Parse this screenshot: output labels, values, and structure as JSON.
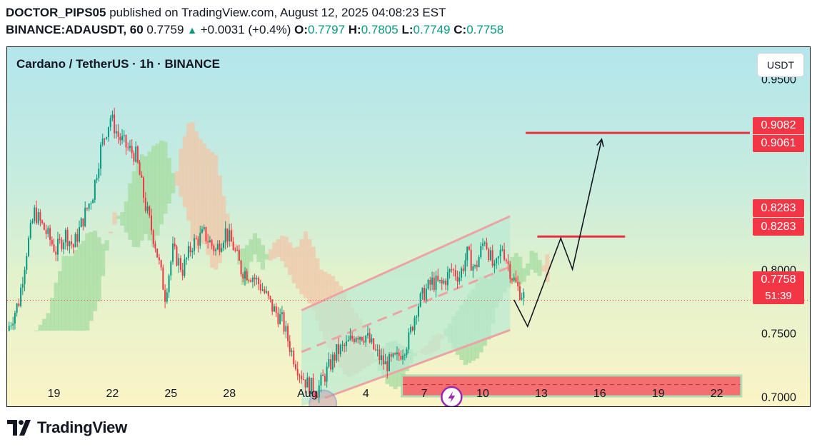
{
  "header": {
    "author": "DOCTOR_PIPS05",
    "published_text": "published on TradingView.com, August 12, 2025 04:08:23 EST",
    "symbol": "BINANCE:ADAUSDT, 60",
    "last": "0.7759",
    "change": "+0.0031 (+0.4%)",
    "o_label": "O:",
    "o_val": "0.7797",
    "h_label": "H:",
    "h_val": "0.7805",
    "l_label": "L:",
    "l_val": "0.7749",
    "c_label": "C:",
    "c_val": "0.7758"
  },
  "chart": {
    "title": "Cardano / TetherUS · 1h · BINANCE",
    "currency_button": "USDT",
    "price_tags": [
      {
        "text": "0.9082"
      },
      {
        "text": "0.9061"
      },
      {
        "text": "0.8283"
      },
      {
        "text": "0.8283"
      },
      {
        "text": "0.7758"
      },
      {
        "text": "51:39"
      }
    ]
  },
  "colors": {
    "up": "#089981",
    "down": "#f23645",
    "level_line": "#e8303f",
    "channel_fill": "#b9ead3",
    "channel_edge": "#eba3a3",
    "cloud_red": "#f0c7a8",
    "cloud_green": "#a6dca0"
  },
  "chart_data": {
    "type": "candlestick",
    "y_ticks": [
      0.95,
      0.9,
      0.85,
      0.8,
      0.75,
      0.7
    ],
    "y_tick_labels": [
      "0.9500",
      "0.9000",
      "0.8500",
      "0.8000",
      "0.7500",
      "0.7000"
    ],
    "ylim": [
      0.6925,
      0.975
    ],
    "x_ticks": [
      19,
      22,
      25,
      28,
      32,
      35,
      38,
      41,
      44,
      47,
      50,
      53
    ],
    "x_tick_labels": [
      "19",
      "22",
      "25",
      "28",
      "Aug",
      "4",
      "7",
      "10",
      "13",
      "16",
      "19",
      "22"
    ],
    "xlim": [
      16.6,
      54.7
    ],
    "close_series": [
      [
        16.6,
        0.752
      ],
      [
        17.2,
        0.775
      ],
      [
        17.6,
        0.815
      ],
      [
        18.0,
        0.845
      ],
      [
        18.5,
        0.832
      ],
      [
        19.1,
        0.815
      ],
      [
        19.6,
        0.828
      ],
      [
        20.0,
        0.818
      ],
      [
        20.5,
        0.84
      ],
      [
        21.0,
        0.86
      ],
      [
        21.4,
        0.895
      ],
      [
        21.9,
        0.92
      ],
      [
        22.3,
        0.905
      ],
      [
        22.8,
        0.895
      ],
      [
        23.2,
        0.89
      ],
      [
        23.7,
        0.85
      ],
      [
        24.2,
        0.82
      ],
      [
        24.7,
        0.78
      ],
      [
        25.1,
        0.815
      ],
      [
        25.6,
        0.8
      ],
      [
        26.1,
        0.82
      ],
      [
        26.7,
        0.828
      ],
      [
        27.3,
        0.815
      ],
      [
        27.8,
        0.83
      ],
      [
        28.2,
        0.818
      ],
      [
        28.6,
        0.8
      ],
      [
        29.2,
        0.795
      ],
      [
        29.7,
        0.785
      ],
      [
        30.2,
        0.77
      ],
      [
        30.7,
        0.76
      ],
      [
        31.2,
        0.735
      ],
      [
        31.6,
        0.72
      ],
      [
        32.0,
        0.71
      ],
      [
        32.5,
        0.705
      ],
      [
        33.0,
        0.72
      ],
      [
        33.5,
        0.735
      ],
      [
        34.0,
        0.74
      ],
      [
        34.5,
        0.75
      ],
      [
        35.0,
        0.748
      ],
      [
        35.5,
        0.735
      ],
      [
        36.0,
        0.725
      ],
      [
        36.6,
        0.73
      ],
      [
        37.2,
        0.745
      ],
      [
        37.6,
        0.77
      ],
      [
        38.0,
        0.782
      ],
      [
        38.4,
        0.79
      ],
      [
        38.9,
        0.788
      ],
      [
        39.4,
        0.8
      ],
      [
        39.8,
        0.795
      ],
      [
        40.2,
        0.812
      ],
      [
        40.6,
        0.8
      ],
      [
        41.1,
        0.825
      ],
      [
        41.6,
        0.798
      ],
      [
        42.0,
        0.818
      ],
      [
        42.5,
        0.795
      ],
      [
        42.8,
        0.785
      ],
      [
        43.2,
        0.777
      ]
    ],
    "annotations": {
      "rising_channel": {
        "x_start": 31.7,
        "x_end": 42.4,
        "lower_start": 0.6925,
        "lower_end": 0.7525,
        "upper_start": 0.768,
        "upper_end": 0.842
      },
      "resistance_levels": [
        {
          "value": 0.9075,
          "x_start": 43.2,
          "x_end": 54.7
        },
        {
          "value": 0.826,
          "x_start": 43.8,
          "x_end": 48.3
        }
      ],
      "demand_zone": {
        "y_top": 0.7159,
        "y_bottom": 0.7012,
        "x_start": 36.9,
        "x_end": 54.2
      },
      "current_price": 0.7758,
      "projected_path": [
        [
          42.6,
          0.7762
        ],
        [
          43.3,
          0.7553
        ],
        [
          45.0,
          0.8247
        ],
        [
          45.6,
          0.8003
        ],
        [
          47.1,
          0.9026
        ]
      ]
    }
  }
}
